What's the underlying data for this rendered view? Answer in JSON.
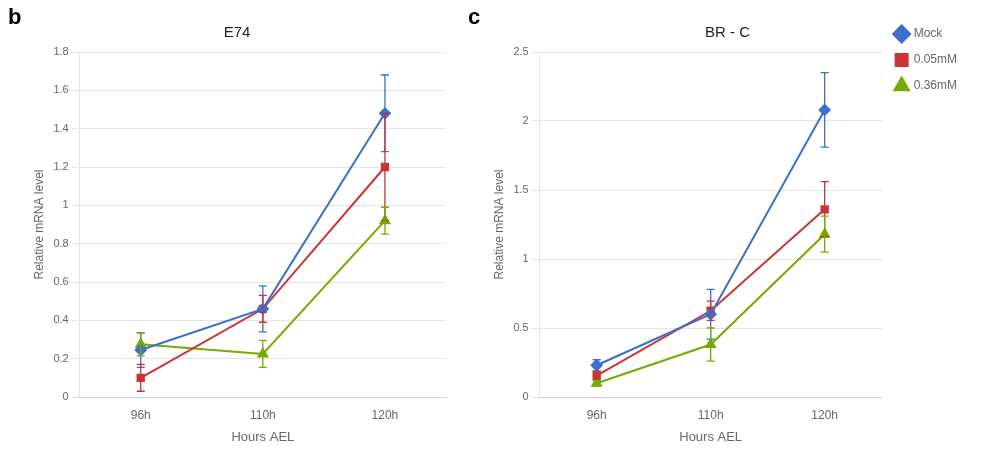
{
  "chart_data": [
    {
      "type": "line",
      "title": "E74",
      "xlabel": "Hours AEL",
      "ylabel": "Relative mRNA level",
      "annotations": [
        "b"
      ],
      "categories": [
        "96h",
        "110h",
        "120h"
      ],
      "series": [
        {
          "name": "Mock",
          "color": "#3c6fcd",
          "marker": "diamond",
          "values": [
            0.245,
            0.46,
            1.48
          ],
          "yerr": [
            0.09,
            0.12,
            0.2
          ]
        },
        {
          "name": "0.05mM",
          "color": "#cc3333",
          "marker": "square",
          "values": [
            0.1,
            0.46,
            1.2
          ],
          "yerr": [
            0.07,
            0.07,
            0.28
          ]
        },
        {
          "name": "0.36mM",
          "color": "#77aa00",
          "marker": "triangle",
          "values": [
            0.275,
            0.225,
            0.92
          ],
          "yerr": [
            0.06,
            0.07,
            0.07
          ]
        }
      ],
      "ylim": [
        0,
        1.8
      ],
      "yticks": [
        0,
        0.2,
        0.4,
        0.6,
        0.8,
        1,
        1.2,
        1.4,
        1.6,
        1.8
      ],
      "grid": true
    },
    {
      "type": "line",
      "title": "BR - C",
      "xlabel": "Hours AEL",
      "ylabel": "Relative mRNA level",
      "annotations": [
        "c"
      ],
      "categories": [
        "96h",
        "110h",
        "120h"
      ],
      "series": [
        {
          "name": "Mock",
          "color": "#3c6fcd",
          "marker": "diamond",
          "values": [
            0.23,
            0.6,
            2.08
          ],
          "yerr": [
            0.04,
            0.18,
            0.27
          ]
        },
        {
          "name": "0.05mM",
          "color": "#cc3333",
          "marker": "square",
          "values": [
            0.155,
            0.625,
            1.36
          ],
          "yerr": [
            0.03,
            0.07,
            0.2
          ]
        },
        {
          "name": "0.36mM",
          "color": "#77aa00",
          "marker": "triangle",
          "values": [
            0.1,
            0.38,
            1.18
          ],
          "yerr": [
            0.02,
            0.12,
            0.13
          ]
        }
      ],
      "ylim": [
        0,
        2.5
      ],
      "yticks": [
        0,
        0.5,
        1,
        1.5,
        2,
        2.5
      ],
      "grid": true,
      "legend": "right"
    }
  ]
}
